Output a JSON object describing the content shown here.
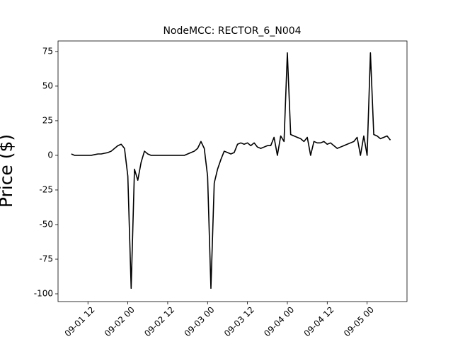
{
  "chart_data": {
    "type": "line",
    "title": "NodeMCC: RECTOR_6_N004",
    "y_label": "Price ($)",
    "x": [
      "09-01 07",
      "09-01 08",
      "09-01 09",
      "09-01 10",
      "09-01 11",
      "09-01 12",
      "09-01 13",
      "09-01 14",
      "09-01 15",
      "09-01 16",
      "09-01 17",
      "09-01 18",
      "09-01 19",
      "09-01 20",
      "09-01 21",
      "09-01 22",
      "09-01 23",
      "09-02 00",
      "09-02 01",
      "09-02 02",
      "09-02 03",
      "09-02 04",
      "09-02 05",
      "09-02 06",
      "09-02 07",
      "09-02 08",
      "09-02 09",
      "09-02 10",
      "09-02 11",
      "09-02 12",
      "09-02 13",
      "09-02 14",
      "09-02 15",
      "09-02 16",
      "09-02 17",
      "09-02 18",
      "09-02 19",
      "09-02 20",
      "09-02 21",
      "09-02 22",
      "09-02 23",
      "09-03 00",
      "09-03 01",
      "09-03 02",
      "09-03 03",
      "09-03 04",
      "09-03 05",
      "09-03 06",
      "09-03 07",
      "09-03 08",
      "09-03 09",
      "09-03 10",
      "09-03 11",
      "09-03 12",
      "09-03 13",
      "09-03 14",
      "09-03 15",
      "09-03 16",
      "09-03 17",
      "09-03 18",
      "09-03 19",
      "09-03 20",
      "09-03 21",
      "09-03 22",
      "09-03 23",
      "09-04 00",
      "09-04 01",
      "09-04 02",
      "09-04 03",
      "09-04 04",
      "09-04 05",
      "09-04 06",
      "09-04 07",
      "09-04 08",
      "09-04 09",
      "09-04 10",
      "09-04 11",
      "09-04 12",
      "09-04 13",
      "09-04 14",
      "09-04 15",
      "09-04 16",
      "09-04 17",
      "09-04 18",
      "09-04 19",
      "09-04 20",
      "09-04 21",
      "09-04 22",
      "09-04 23",
      "09-05 00",
      "09-05 01",
      "09-05 02",
      "09-05 03",
      "09-05 04",
      "09-05 05",
      "09-05 06",
      "09-05 07"
    ],
    "series": [
      {
        "name": "RECTOR_6_N004",
        "color": "#000000",
        "values": [
          1,
          0,
          0,
          0,
          0,
          0,
          0,
          0.5,
          1,
          1,
          1.5,
          2,
          3,
          5,
          7,
          8,
          5,
          -15,
          -96,
          -10,
          -18,
          -5,
          3,
          1,
          0,
          0,
          0,
          0,
          0,
          0,
          0,
          0,
          0,
          0,
          0,
          1,
          2,
          3,
          5,
          10,
          5,
          -15,
          -96,
          -20,
          -10,
          -3,
          3,
          2,
          1,
          2,
          8,
          9,
          8,
          9,
          7,
          9,
          6,
          5,
          6,
          7,
          7,
          13,
          0,
          14,
          10,
          74,
          15,
          14,
          13,
          12,
          10,
          13,
          0,
          10,
          9,
          9,
          10,
          8,
          9,
          7,
          5,
          6,
          7,
          8,
          9,
          10,
          13,
          0,
          14,
          0,
          74,
          15,
          14,
          12,
          13,
          14,
          11
        ]
      }
    ],
    "xlim": [
      "09-01 03",
      "09-05 12"
    ],
    "xticks": [
      "09-01 12",
      "09-02 00",
      "09-02 12",
      "09-03 00",
      "09-03 12",
      "09-04 00",
      "09-04 12",
      "09-05 00"
    ],
    "ylim": [
      -105.6,
      82.6
    ],
    "yticks": [
      -100,
      -75,
      -50,
      -25,
      0,
      25,
      50,
      75
    ]
  }
}
